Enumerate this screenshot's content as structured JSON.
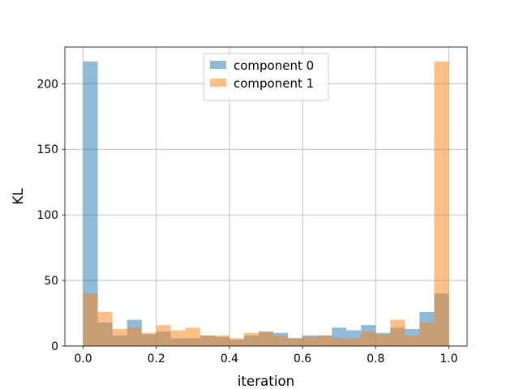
{
  "chart_data": {
    "type": "bar",
    "title": "",
    "xlabel": "iteration",
    "ylabel": "KL",
    "xlim": [
      -0.05,
      1.05
    ],
    "ylim": [
      0,
      228
    ],
    "xticks": [
      0.0,
      0.2,
      0.4,
      0.6,
      0.8,
      1.0
    ],
    "xtick_labels": [
      "0.0",
      "0.2",
      "0.4",
      "0.6",
      "0.8",
      "1.0"
    ],
    "yticks": [
      0,
      50,
      100,
      150,
      200
    ],
    "ytick_labels": [
      "0",
      "50",
      "100",
      "150",
      "200"
    ],
    "grid": true,
    "legend_position": "top-center",
    "bin_edges": [
      0.0,
      0.04,
      0.08,
      0.12,
      0.16,
      0.2,
      0.24,
      0.28,
      0.32,
      0.36,
      0.4,
      0.44,
      0.48,
      0.52,
      0.56,
      0.6,
      0.64,
      0.68,
      0.72,
      0.76,
      0.8,
      0.84,
      0.88,
      0.92,
      0.96,
      1.0
    ],
    "series": [
      {
        "name": "component 0",
        "color": "#1f77b4",
        "opacity": 0.5,
        "values": [
          217,
          18,
          8,
          20,
          9,
          11,
          6,
          6,
          8,
          7,
          5,
          8,
          11,
          10,
          6,
          8,
          8,
          14,
          12,
          16,
          10,
          14,
          13,
          26,
          40
        ]
      },
      {
        "name": "component 1",
        "color": "#ff7f0e",
        "opacity": 0.5,
        "values": [
          40,
          26,
          13,
          14,
          10,
          16,
          12,
          14,
          8,
          8,
          6,
          10,
          11,
          8,
          6,
          7,
          8,
          6,
          6,
          11,
          9,
          20,
          8,
          18,
          217
        ]
      }
    ]
  }
}
